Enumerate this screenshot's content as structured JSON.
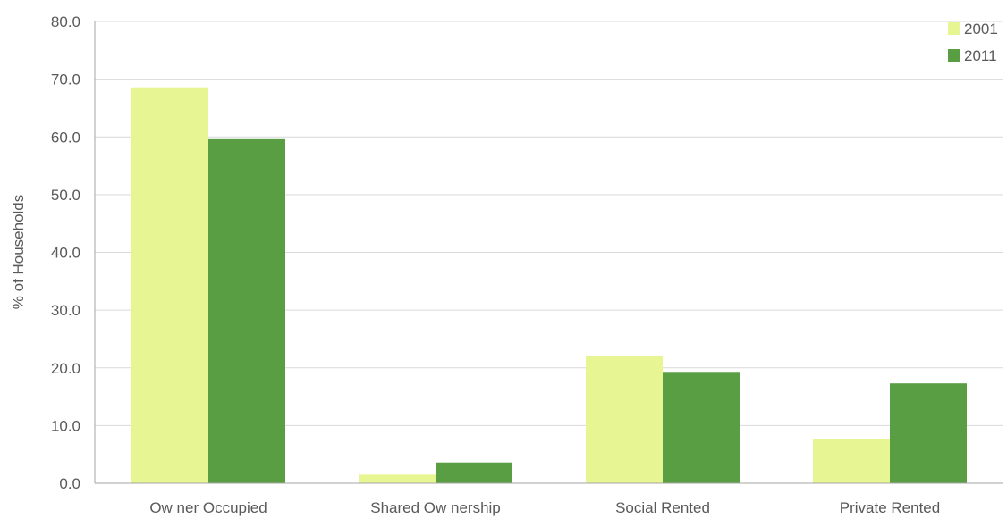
{
  "chart_data": {
    "type": "bar",
    "title": "",
    "xlabel": "",
    "ylabel": "% of Households",
    "ylim": [
      0,
      80
    ],
    "yticks": [
      "0.0",
      "10.0",
      "20.0",
      "30.0",
      "40.0",
      "50.0",
      "60.0",
      "70.0",
      "80.0"
    ],
    "grid": true,
    "legend_position": "top-right",
    "categories": [
      "Ow ner Occupied",
      "Shared Ow nership",
      "Social Rented",
      "Private Rented"
    ],
    "series": [
      {
        "name": "2001",
        "color": "#e8f593",
        "values": [
          68.6,
          1.5,
          22.1,
          7.7
        ]
      },
      {
        "name": "2011",
        "color": "#5a9e44",
        "values": [
          59.6,
          3.6,
          19.3,
          17.3
        ]
      }
    ]
  }
}
